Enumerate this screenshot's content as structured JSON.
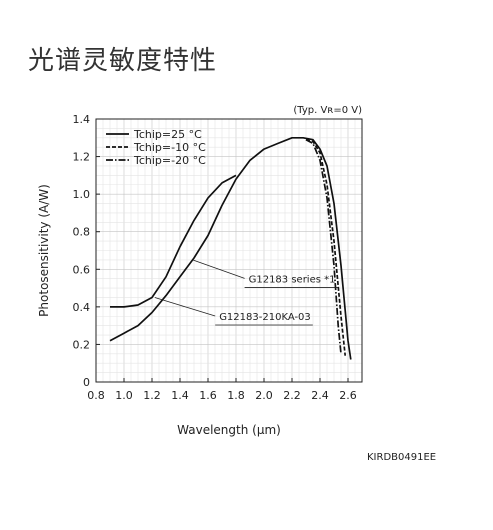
{
  "page": {
    "title": "光谱灵敏度特性",
    "doc_code": "KIRDB0491EE"
  },
  "chart_data": {
    "type": "line",
    "title": "",
    "condition": "(Typ. Vʀ=0 V)",
    "xlabel": "Wavelength (μm)",
    "ylabel": "Photosensitivity (A/W)",
    "xlim": [
      0.8,
      2.7
    ],
    "ylim": [
      0,
      1.4
    ],
    "xticks": [
      0.8,
      1.0,
      1.2,
      1.4,
      1.6,
      1.8,
      2.0,
      2.2,
      2.4,
      2.6
    ],
    "yticks": [
      0,
      0.2,
      0.4,
      0.6,
      0.8,
      1.0,
      1.2,
      1.4
    ],
    "grid": true,
    "legend_position": "top-left",
    "annotations": [
      {
        "text": "G12183 series *1",
        "x": 1.49,
        "y": 0.65,
        "label_x": 1.89,
        "label_y": 0.53
      },
      {
        "text": "G12183-210KA-03",
        "x": 1.22,
        "y": 0.45,
        "label_x": 1.68,
        "label_y": 0.33
      }
    ],
    "series": [
      {
        "name": "Tchip=25 °C",
        "dash": "solid",
        "x": [
          0.9,
          1.0,
          1.1,
          1.2,
          1.3,
          1.4,
          1.5,
          1.6,
          1.7,
          1.8,
          1.9,
          2.0,
          2.1,
          2.2,
          2.28,
          2.35,
          2.4,
          2.45,
          2.5,
          2.55,
          2.58,
          2.6,
          2.62
        ],
        "y": [
          0.22,
          0.26,
          0.3,
          0.37,
          0.46,
          0.56,
          0.66,
          0.78,
          0.94,
          1.08,
          1.18,
          1.24,
          1.27,
          1.3,
          1.3,
          1.29,
          1.24,
          1.15,
          0.95,
          0.62,
          0.38,
          0.22,
          0.12
        ]
      },
      {
        "name": "Tchip=-10 °C",
        "dash": "dashed",
        "x": [
          2.3,
          2.35,
          2.4,
          2.45,
          2.5,
          2.55,
          2.58
        ],
        "y": [
          1.29,
          1.28,
          1.22,
          1.05,
          0.75,
          0.35,
          0.14
        ]
      },
      {
        "name": "Tchip=-20 °C",
        "dash": "dashdot",
        "x": [
          2.3,
          2.35,
          2.4,
          2.45,
          2.5,
          2.53,
          2.55
        ],
        "y": [
          1.29,
          1.27,
          1.18,
          0.98,
          0.62,
          0.3,
          0.15
        ]
      },
      {
        "name": "",
        "dash": "solid",
        "x": [
          0.9,
          1.0,
          1.1,
          1.2,
          1.3,
          1.4,
          1.5,
          1.6,
          1.7,
          1.8
        ],
        "y": [
          0.4,
          0.4,
          0.41,
          0.45,
          0.56,
          0.72,
          0.86,
          0.98,
          1.06,
          1.1
        ]
      }
    ]
  }
}
